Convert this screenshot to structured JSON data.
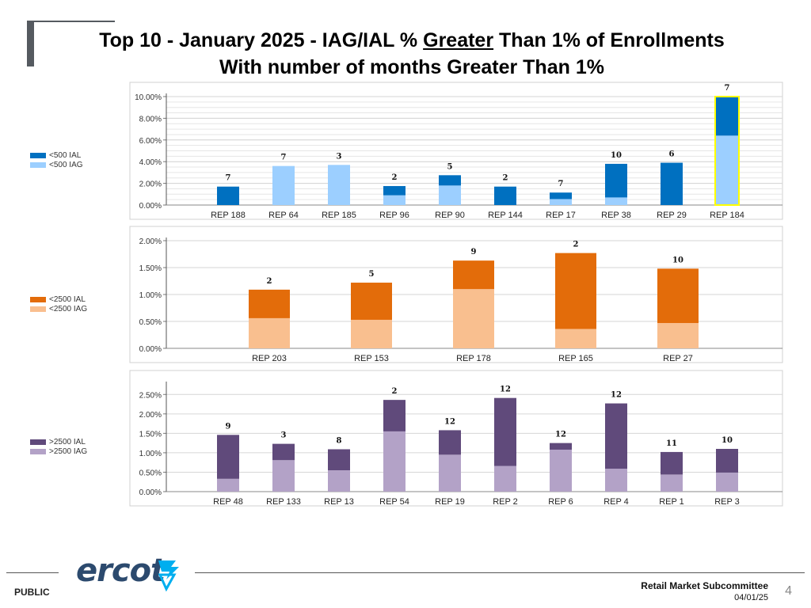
{
  "header": {
    "title_part1": "Top 10 - January 2025 - IAG/IAL %",
    "title_emph": "Greater",
    "title_part2": "Than 1% of Enrollments",
    "title_line2": "With number of months Greater Than 1%"
  },
  "chart_data": [
    {
      "type": "bar",
      "stacked": true,
      "categories": [
        "REP 188",
        "REP 64",
        "REP 185",
        "REP 96",
        "REP 90",
        "REP 144",
        "REP 17",
        "REP 38",
        "REP 29",
        "REP 184"
      ],
      "series": [
        {
          "name": "<500 IAL",
          "color": "#0070c0",
          "values": [
            1.7,
            0.0,
            0.0,
            0.85,
            0.95,
            1.7,
            0.6,
            3.1,
            3.9,
            3.6
          ]
        },
        {
          "name": "<500 IAG",
          "color": "#9ccfff",
          "values": [
            0.0,
            3.6,
            3.7,
            0.9,
            1.8,
            0.0,
            0.55,
            0.7,
            0.0,
            6.4
          ]
        }
      ],
      "labels": [
        "7",
        "7",
        "3",
        "2",
        "5",
        "2",
        "7",
        "10",
        "6",
        "7"
      ],
      "highlight": "REP 184",
      "ylim": [
        0,
        10
      ],
      "yticks": [
        "0.00%",
        "2.00%",
        "4.00%",
        "6.00%",
        "8.00%",
        "10.00%"
      ],
      "ytick_values": [
        0,
        2,
        4,
        6,
        8,
        10
      ],
      "title": "",
      "xlabel": "",
      "ylabel": ""
    },
    {
      "type": "bar",
      "stacked": true,
      "categories": [
        "REP 203",
        "REP 153",
        "REP 178",
        "REP 165",
        "REP 27"
      ],
      "series": [
        {
          "name": "<2500 IAL",
          "color": "#e36c0a",
          "values": [
            0.53,
            0.69,
            0.53,
            1.41,
            1.01
          ]
        },
        {
          "name": "<2500 IAG",
          "color": "#f9bf8f",
          "values": [
            0.56,
            0.53,
            1.1,
            0.36,
            0.47
          ]
        }
      ],
      "labels": [
        "2",
        "5",
        "9",
        "2",
        "10"
      ],
      "ylim": [
        0,
        2
      ],
      "yticks": [
        "0.00%",
        "0.50%",
        "1.00%",
        "1.50%",
        "2.00%"
      ],
      "ytick_values": [
        0,
        0.5,
        1.0,
        1.5,
        2.0
      ],
      "title": "",
      "xlabel": "",
      "ylabel": ""
    },
    {
      "type": "bar",
      "stacked": true,
      "categories": [
        "REP 48",
        "REP 133",
        "REP 13",
        "REP 54",
        "REP 19",
        "REP 2",
        "REP 6",
        "REP 4",
        "REP 1",
        "REP 3"
      ],
      "series": [
        {
          "name": ">2500 IAL",
          "color": "#604a7b",
          "values": [
            1.13,
            0.42,
            0.54,
            0.81,
            0.63,
            1.75,
            0.17,
            1.68,
            0.58,
            0.61
          ]
        },
        {
          "name": ">2500 IAG",
          "color": "#b3a2c7",
          "values": [
            0.33,
            0.81,
            0.55,
            1.55,
            0.95,
            0.66,
            1.08,
            0.59,
            0.44,
            0.49
          ]
        }
      ],
      "labels": [
        "9",
        "3",
        "8",
        "2",
        "12",
        "12",
        "12",
        "12",
        "11",
        "10"
      ],
      "ylim": [
        0,
        2.75
      ],
      "yticks": [
        "0.00%",
        "0.50%",
        "1.00%",
        "1.50%",
        "2.00%",
        "2.50%"
      ],
      "ytick_values": [
        0,
        0.5,
        1.0,
        1.5,
        2.0,
        2.5
      ],
      "title": "",
      "xlabel": "",
      "ylabel": ""
    }
  ],
  "legends": [
    [
      {
        "label": "<500 IAL",
        "color": "#0070c0"
      },
      {
        "label": "<500 IAG",
        "color": "#9ccfff"
      }
    ],
    [
      {
        "label": "<2500 IAL",
        "color": "#e36c0a"
      },
      {
        "label": "<2500 IAG",
        "color": "#f9bf8f"
      }
    ],
    [
      {
        "label": ">2500 IAL",
        "color": "#604a7b"
      },
      {
        "label": ">2500 IAG",
        "color": "#b3a2c7"
      }
    ]
  ],
  "footer": {
    "classification": "PUBLIC",
    "logo_text": "ercot",
    "committee": "Retail Market Subcommittee",
    "date": "04/01/25",
    "page_number": "4"
  }
}
